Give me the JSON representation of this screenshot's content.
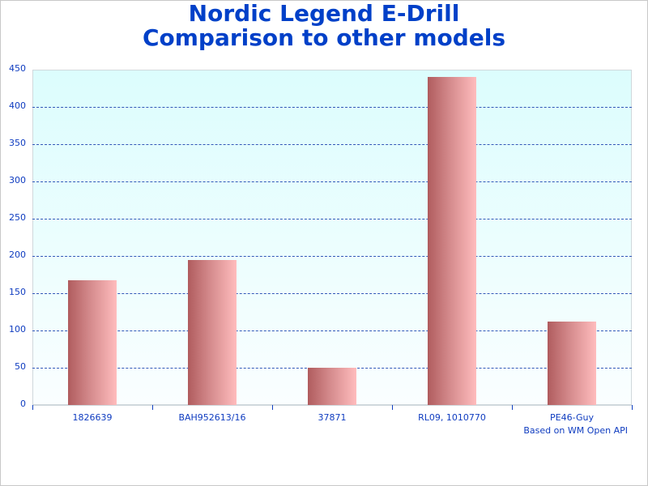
{
  "title": {
    "line1": "Nordic Legend E-Drill",
    "line2": "Comparison to other models"
  },
  "credit": "Based on WM Open API",
  "colors": {
    "title": "#0040c8",
    "axis_text": "#0f3cc0",
    "grid": "#3358b8",
    "bar_dark": "#b05c5e",
    "bar_light": "#ffbcbd",
    "plot_bg_top": "#dcfdfd",
    "plot_bg_bottom": "#fafeff"
  },
  "y_ticks": [
    "450",
    "400",
    "350",
    "300",
    "250",
    "200",
    "150",
    "100",
    "50",
    "0"
  ],
  "chart_data": {
    "type": "bar",
    "title": "Nordic Legend E-Drill Comparison to other models",
    "categories": [
      "1826639",
      "BAH952613/16",
      "37871",
      "RL09, 1010770",
      "PE46-Guy"
    ],
    "values": [
      167,
      195,
      50,
      440,
      112
    ],
    "xlabel": "",
    "ylabel": "",
    "ylim": [
      0,
      450
    ],
    "yticks": [
      0,
      50,
      100,
      150,
      200,
      250,
      300,
      350,
      400,
      450
    ],
    "grid": true,
    "legend": null,
    "annotations": [
      "Based on WM Open API"
    ]
  }
}
